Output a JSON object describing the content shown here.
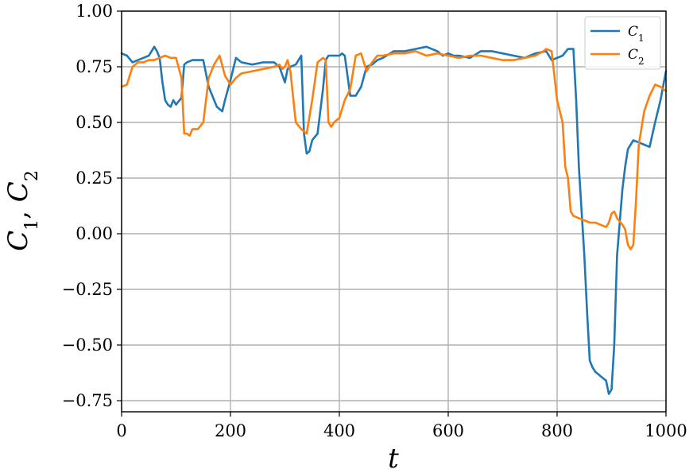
{
  "chart_data": {
    "type": "line",
    "title": "",
    "xlabel": "t",
    "ylabel": "C1, C2",
    "xlim": [
      0,
      1000
    ],
    "ylim": [
      -0.8,
      1.0
    ],
    "xticks": [
      0,
      200,
      400,
      600,
      800,
      1000
    ],
    "xtick_labels": [
      "0",
      "200",
      "400",
      "600",
      "800",
      "1000"
    ],
    "yticks": [
      -0.75,
      -0.5,
      -0.25,
      0.0,
      0.25,
      0.5,
      0.75,
      1.0
    ],
    "ytick_labels": [
      "−0.75",
      "−0.50",
      "−0.25",
      "0.00",
      "0.25",
      "0.50",
      "0.75",
      "1.00"
    ],
    "grid": true,
    "legend_position": "top-right",
    "series": [
      {
        "name": "C1",
        "color": "#1f77b4",
        "x": [
          0,
          10,
          20,
          30,
          40,
          50,
          55,
          60,
          65,
          70,
          75,
          80,
          85,
          90,
          95,
          100,
          110,
          115,
          120,
          130,
          140,
          150,
          160,
          170,
          175,
          180,
          185,
          190,
          200,
          210,
          220,
          240,
          260,
          280,
          290,
          300,
          305,
          310,
          320,
          330,
          335,
          340,
          345,
          350,
          360,
          370,
          375,
          380,
          390,
          400,
          405,
          410,
          420,
          430,
          440,
          450,
          460,
          470,
          480,
          500,
          520,
          540,
          560,
          580,
          590,
          600,
          610,
          620,
          640,
          660,
          680,
          700,
          720,
          740,
          760,
          780,
          790,
          800,
          810,
          820,
          825,
          830,
          835,
          840,
          850,
          855,
          860,
          865,
          870,
          875,
          880,
          890,
          895,
          900,
          905,
          910,
          915,
          920,
          925,
          930,
          940,
          950,
          960,
          970,
          980,
          990,
          1000
        ],
        "y": [
          0.81,
          0.8,
          0.77,
          0.78,
          0.79,
          0.8,
          0.82,
          0.84,
          0.82,
          0.79,
          0.68,
          0.6,
          0.58,
          0.57,
          0.6,
          0.58,
          0.61,
          0.76,
          0.77,
          0.78,
          0.78,
          0.78,
          0.66,
          0.6,
          0.57,
          0.56,
          0.55,
          0.6,
          0.69,
          0.79,
          0.77,
          0.76,
          0.77,
          0.77,
          0.75,
          0.68,
          0.74,
          0.75,
          0.76,
          0.8,
          0.45,
          0.36,
          0.37,
          0.42,
          0.45,
          0.65,
          0.78,
          0.8,
          0.8,
          0.8,
          0.81,
          0.8,
          0.62,
          0.62,
          0.66,
          0.75,
          0.76,
          0.78,
          0.79,
          0.82,
          0.82,
          0.83,
          0.84,
          0.82,
          0.8,
          0.81,
          0.8,
          0.8,
          0.79,
          0.82,
          0.82,
          0.81,
          0.8,
          0.79,
          0.81,
          0.82,
          0.78,
          0.79,
          0.8,
          0.83,
          0.83,
          0.83,
          0.6,
          0.3,
          -0.1,
          -0.35,
          -0.57,
          -0.6,
          -0.62,
          -0.63,
          -0.64,
          -0.66,
          -0.72,
          -0.7,
          -0.5,
          -0.1,
          0.05,
          0.2,
          0.3,
          0.38,
          0.42,
          0.41,
          0.4,
          0.39,
          0.5,
          0.6,
          0.73
        ]
      },
      {
        "name": "C2",
        "color": "#ff7f0e",
        "x": [
          0,
          10,
          20,
          30,
          40,
          50,
          60,
          70,
          80,
          90,
          100,
          110,
          115,
          120,
          125,
          130,
          140,
          150,
          155,
          160,
          170,
          180,
          190,
          200,
          210,
          220,
          240,
          260,
          280,
          290,
          295,
          300,
          305,
          310,
          320,
          330,
          335,
          340,
          350,
          360,
          370,
          375,
          380,
          385,
          390,
          400,
          410,
          420,
          430,
          440,
          450,
          460,
          470,
          480,
          500,
          520,
          540,
          560,
          580,
          600,
          620,
          640,
          660,
          680,
          700,
          720,
          740,
          760,
          775,
          780,
          790,
          800,
          810,
          815,
          820,
          825,
          830,
          840,
          850,
          860,
          870,
          880,
          890,
          895,
          900,
          905,
          910,
          920,
          925,
          930,
          935,
          940,
          945,
          950,
          960,
          970,
          980,
          990,
          1000
        ],
        "y": [
          0.66,
          0.67,
          0.75,
          0.77,
          0.77,
          0.78,
          0.78,
          0.79,
          0.8,
          0.79,
          0.79,
          0.7,
          0.45,
          0.45,
          0.44,
          0.47,
          0.47,
          0.5,
          0.6,
          0.7,
          0.76,
          0.8,
          0.71,
          0.67,
          0.7,
          0.72,
          0.73,
          0.74,
          0.75,
          0.76,
          0.74,
          0.75,
          0.78,
          0.73,
          0.5,
          0.47,
          0.46,
          0.45,
          0.6,
          0.77,
          0.79,
          0.78,
          0.5,
          0.48,
          0.5,
          0.52,
          0.6,
          0.65,
          0.8,
          0.81,
          0.73,
          0.77,
          0.8,
          0.8,
          0.81,
          0.81,
          0.82,
          0.8,
          0.81,
          0.8,
          0.79,
          0.8,
          0.8,
          0.79,
          0.78,
          0.78,
          0.79,
          0.8,
          0.82,
          0.83,
          0.82,
          0.6,
          0.5,
          0.3,
          0.25,
          0.1,
          0.08,
          0.07,
          0.06,
          0.05,
          0.05,
          0.04,
          0.03,
          0.05,
          0.09,
          0.1,
          0.07,
          0.04,
          0.02,
          -0.05,
          -0.07,
          -0.05,
          0.15,
          0.4,
          0.55,
          0.62,
          0.67,
          0.66,
          0.64
        ]
      }
    ]
  }
}
